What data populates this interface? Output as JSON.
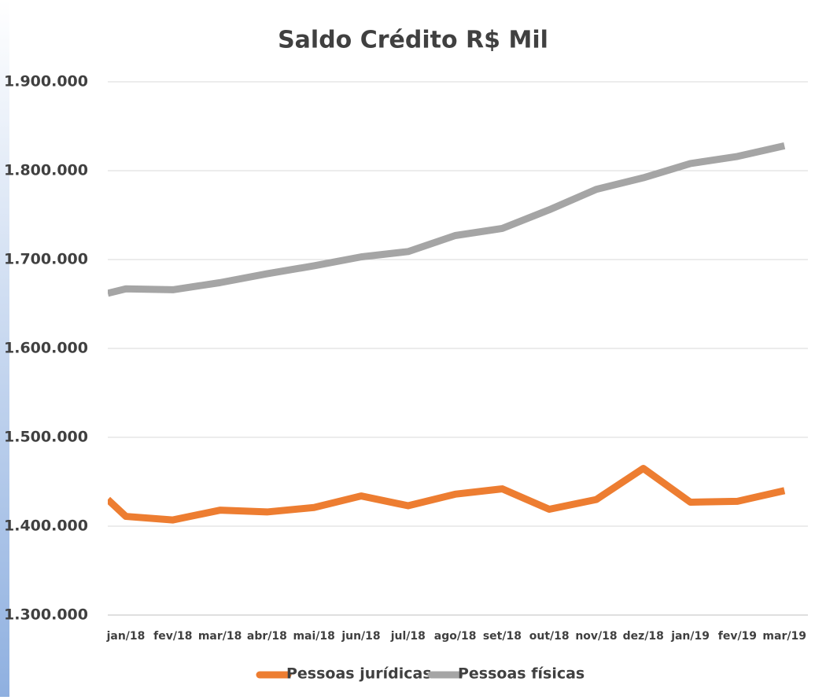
{
  "chart_data": {
    "type": "line",
    "title": "Saldo Crédito R$ Mil",
    "categories": [
      null,
      "jan/18",
      "fev/18",
      "mar/18",
      "abr/18",
      "mai/18",
      "jun/18",
      "jul/18",
      "ago/18",
      "set/18",
      "out/18",
      "nov/18",
      "dez/18",
      "jan/19",
      "fev/19",
      "mar/19"
    ],
    "series": [
      {
        "name": "Pessoas jurídicas",
        "color": "#ed7d31",
        "values": [
          1430000,
          1411000,
          1407000,
          1418000,
          1416000,
          1421000,
          1434000,
          1423000,
          1436000,
          1442000,
          1419000,
          1430000,
          1465000,
          1427000,
          1428000,
          1440000
        ]
      },
      {
        "name": "Pessoas físicas",
        "color": "#a5a5a5",
        "values": [
          1662000,
          1667000,
          1666000,
          1674000,
          1684000,
          1693000,
          1703000,
          1709000,
          1727000,
          1735000,
          1756000,
          1779000,
          1792000,
          1808000,
          1816000,
          1828000
        ]
      }
    ],
    "ylim": [
      1300000,
      1900000
    ],
    "yticks": [
      {
        "value": 1300000,
        "label": "1.300.000"
      },
      {
        "value": 1400000,
        "label": "1.400.000"
      },
      {
        "value": 1500000,
        "label": "1.500.000"
      },
      {
        "value": 1600000,
        "label": "1.600.000"
      },
      {
        "value": 1700000,
        "label": "1.700.000"
      },
      {
        "value": 1800000,
        "label": "1.800.000"
      },
      {
        "value": 1900000,
        "label": "1.900.000"
      }
    ],
    "grid": true,
    "legend": "bottom"
  }
}
